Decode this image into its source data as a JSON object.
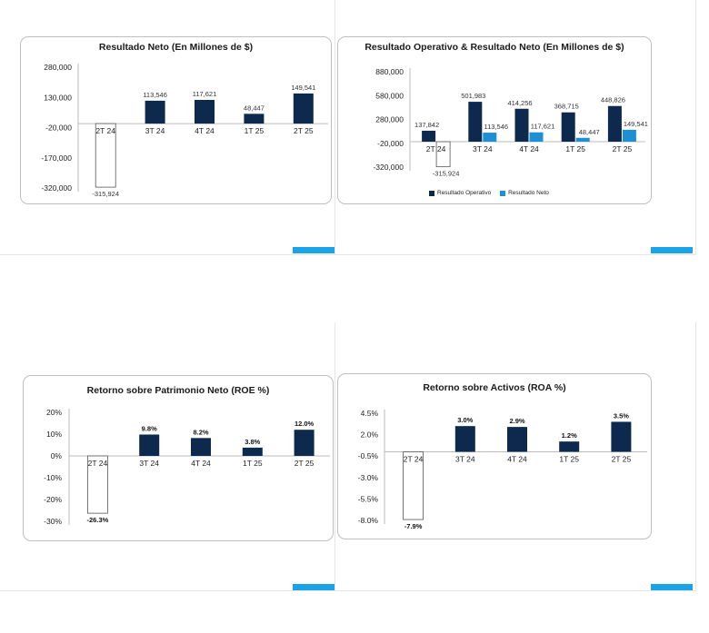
{
  "colors": {
    "positive": "#0d2a4e",
    "secondary": "#1f8fd4",
    "negative_fill": "#ffffff",
    "negative_stroke": "#555555",
    "accent": "#1aa3e6"
  },
  "chart_data": [
    {
      "type": "bar",
      "title": "Resultado Neto (En Millones de $)",
      "categories": [
        "2T 24",
        "3T 24",
        "4T 24",
        "1T 25",
        "2T 25"
      ],
      "values": [
        -315924,
        113546,
        117621,
        48447,
        149541
      ],
      "value_labels": [
        "-315,924",
        "113,546",
        "117,621",
        "48,447",
        "149,541"
      ],
      "yticks": [
        280000,
        130000,
        -20000,
        -170000,
        -320000
      ],
      "ytick_labels": [
        "280,000",
        "130,000",
        "-20,000",
        "-170,000",
        "-320,000"
      ],
      "ylim": [
        -320000,
        280000
      ],
      "grid": false,
      "label_bold": false
    },
    {
      "type": "bar",
      "title": "Resultado Operativo & Resultado Neto  (En Millones de $)",
      "categories": [
        "2T 24",
        "3T 24",
        "4T 24",
        "1T 25",
        "2T 25"
      ],
      "series": [
        {
          "name": "Resultado Operativo",
          "values": [
            137842,
            501983,
            414256,
            368715,
            448826
          ],
          "value_labels": [
            "137,842",
            "501,983",
            "414,256",
            "368,715",
            "448,826"
          ]
        },
        {
          "name": "Resultado Neto",
          "values": [
            -315924,
            113546,
            117621,
            48447,
            149541
          ],
          "value_labels": [
            "-315,924",
            "113,546",
            "117,621",
            "48,447",
            "149,541"
          ]
        }
      ],
      "yticks": [
        880000,
        580000,
        280000,
        -20000,
        -320000
      ],
      "ytick_labels": [
        "880,000",
        "580,000",
        "280,000",
        "-20,000",
        "-320,000"
      ],
      "ylim": [
        -320000,
        880000
      ],
      "legend": "bottom",
      "grid": false,
      "label_bold": false
    },
    {
      "type": "bar",
      "title": "Retorno sobre Patrimonio Neto (ROE %)",
      "categories": [
        "2T 24",
        "3T 24",
        "4T 24",
        "1T 25",
        "2T 25"
      ],
      "values": [
        -26.3,
        9.8,
        8.2,
        3.8,
        12.0
      ],
      "value_labels": [
        "-26.3%",
        "9.8%",
        "8.2%",
        "3.8%",
        "12.0%"
      ],
      "yticks": [
        20,
        10,
        0,
        -10,
        -20,
        -30
      ],
      "ytick_labels": [
        "20%",
        "10%",
        "0%",
        "-10%",
        "-20%",
        "-30%"
      ],
      "ylim": [
        -30,
        20
      ],
      "grid": false,
      "label_bold": true
    },
    {
      "type": "bar",
      "title": "Retorno sobre Activos (ROA %)",
      "categories": [
        "2T 24",
        "3T 24",
        "4T 24",
        "1T 25",
        "2T 25"
      ],
      "values": [
        -7.9,
        3.0,
        2.9,
        1.2,
        3.5
      ],
      "value_labels": [
        "-7.9%",
        "3.0%",
        "2.9%",
        "1.2%",
        "3.5%"
      ],
      "yticks": [
        4.5,
        2.0,
        -0.5,
        -3.0,
        -5.5,
        -8.0
      ],
      "ytick_labels": [
        "4.5%",
        "2.0%",
        "-0.5%",
        "-3.0%",
        "-5.5%",
        "-8.0%"
      ],
      "ylim": [
        -8.0,
        4.5
      ],
      "grid": false,
      "label_bold": true
    }
  ]
}
